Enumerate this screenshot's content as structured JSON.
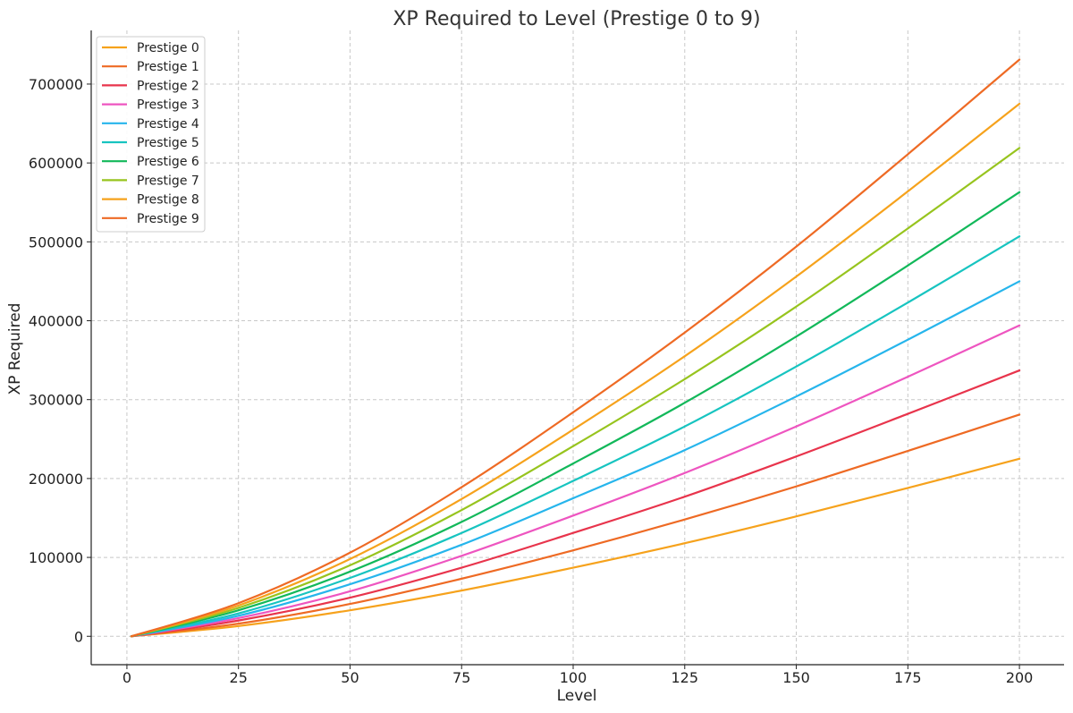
{
  "chart_data": {
    "type": "line",
    "title": "XP Required to Level (Prestige 0 to 9)",
    "xlabel": "Level",
    "ylabel": "XP Required",
    "xlim": [
      -8,
      210
    ],
    "ylim": [
      -36000,
      768000
    ],
    "xticks": [
      0,
      25,
      50,
      75,
      100,
      125,
      150,
      175,
      200
    ],
    "yticks": [
      0,
      100000,
      200000,
      300000,
      400000,
      500000,
      600000,
      700000
    ],
    "grid": true,
    "legend_position": "top-left",
    "x": [
      1,
      25,
      50,
      75,
      100,
      125,
      150,
      175,
      200
    ],
    "series": [
      {
        "name": "Prestige 0",
        "color": "#f6a21c",
        "values": [
          0,
          13000,
          33000,
          58000,
          87000,
          118000,
          152000,
          188000,
          225000
        ]
      },
      {
        "name": "Prestige 1",
        "color": "#ee6a24",
        "values": [
          0,
          16000,
          41000,
          73000,
          109000,
          148000,
          190000,
          235000,
          281000
        ]
      },
      {
        "name": "Prestige 2",
        "color": "#e8344c",
        "values": [
          0,
          20000,
          49000,
          87000,
          131000,
          177000,
          228000,
          282000,
          337000
        ]
      },
      {
        "name": "Prestige 3",
        "color": "#ee55c0",
        "values": [
          0,
          23000,
          57000,
          102000,
          153000,
          207000,
          266000,
          329000,
          394000
        ]
      },
      {
        "name": "Prestige 4",
        "color": "#26b5ec",
        "values": [
          0,
          26000,
          66000,
          116000,
          175000,
          236000,
          304000,
          376000,
          450000
        ]
      },
      {
        "name": "Prestige 5",
        "color": "#17c4c0",
        "values": [
          0,
          29000,
          74000,
          131000,
          197000,
          266000,
          342000,
          423000,
          507000
        ]
      },
      {
        "name": "Prestige 6",
        "color": "#12b85a",
        "values": [
          0,
          33000,
          82000,
          145000,
          219000,
          296000,
          380000,
          470000,
          563000
        ]
      },
      {
        "name": "Prestige 7",
        "color": "#97c41e",
        "values": [
          0,
          36000,
          90000,
          160000,
          241000,
          326000,
          418000,
          517000,
          619000
        ]
      },
      {
        "name": "Prestige 8",
        "color": "#f6a21c",
        "values": [
          0,
          39000,
          98000,
          174000,
          262000,
          355000,
          456000,
          564000,
          675000
        ]
      },
      {
        "name": "Prestige 9",
        "color": "#ee6a24",
        "values": [
          0,
          42000,
          106000,
          189000,
          284000,
          385000,
          494000,
          611000,
          731000
        ]
      }
    ]
  }
}
